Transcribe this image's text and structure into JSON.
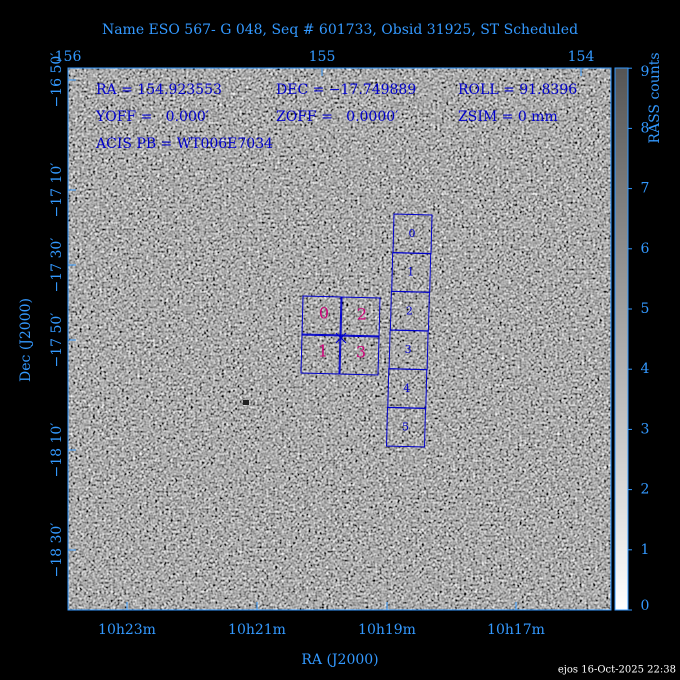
{
  "header": {
    "title": "Name ESO 567- G 048, Seq # 601733, Obsid 31925, ST Scheduled"
  },
  "axes": {
    "top_ticks": [
      "156",
      "155",
      "154"
    ],
    "left_ticks": [
      "−16 50′",
      "−17 10′",
      "−17 30′",
      "−17 50′",
      "−18 10′",
      "−18 30′"
    ],
    "bottom_ticks": [
      "10h23m",
      "10h21m",
      "10h19m",
      "10h17m"
    ],
    "x_label": "RA (J2000)",
    "y_label": "Dec (J2000)"
  },
  "info": {
    "ra": "RA = 154.923553",
    "dec": "DEC = −17.749889",
    "roll": "ROLL = 91.8396",
    "yoff": "YOFF =   0.000′",
    "zoff": "ZOFF =   0.0000′",
    "zsim": "ZSIM = 0 mm",
    "pb": "ACIS PB = WT006E7034"
  },
  "acis_i": {
    "chips": [
      "0",
      "2",
      "1",
      "3"
    ]
  },
  "acis_s": {
    "chips": [
      "0",
      "1",
      "2",
      "3",
      "4",
      "5"
    ]
  },
  "colorbar": {
    "label": "RASS counts",
    "ticks": [
      "0",
      "1",
      "2",
      "3",
      "4",
      "5",
      "6",
      "7",
      "8",
      "9"
    ]
  },
  "footer": "ejos 16-Oct-2025 22:38"
}
